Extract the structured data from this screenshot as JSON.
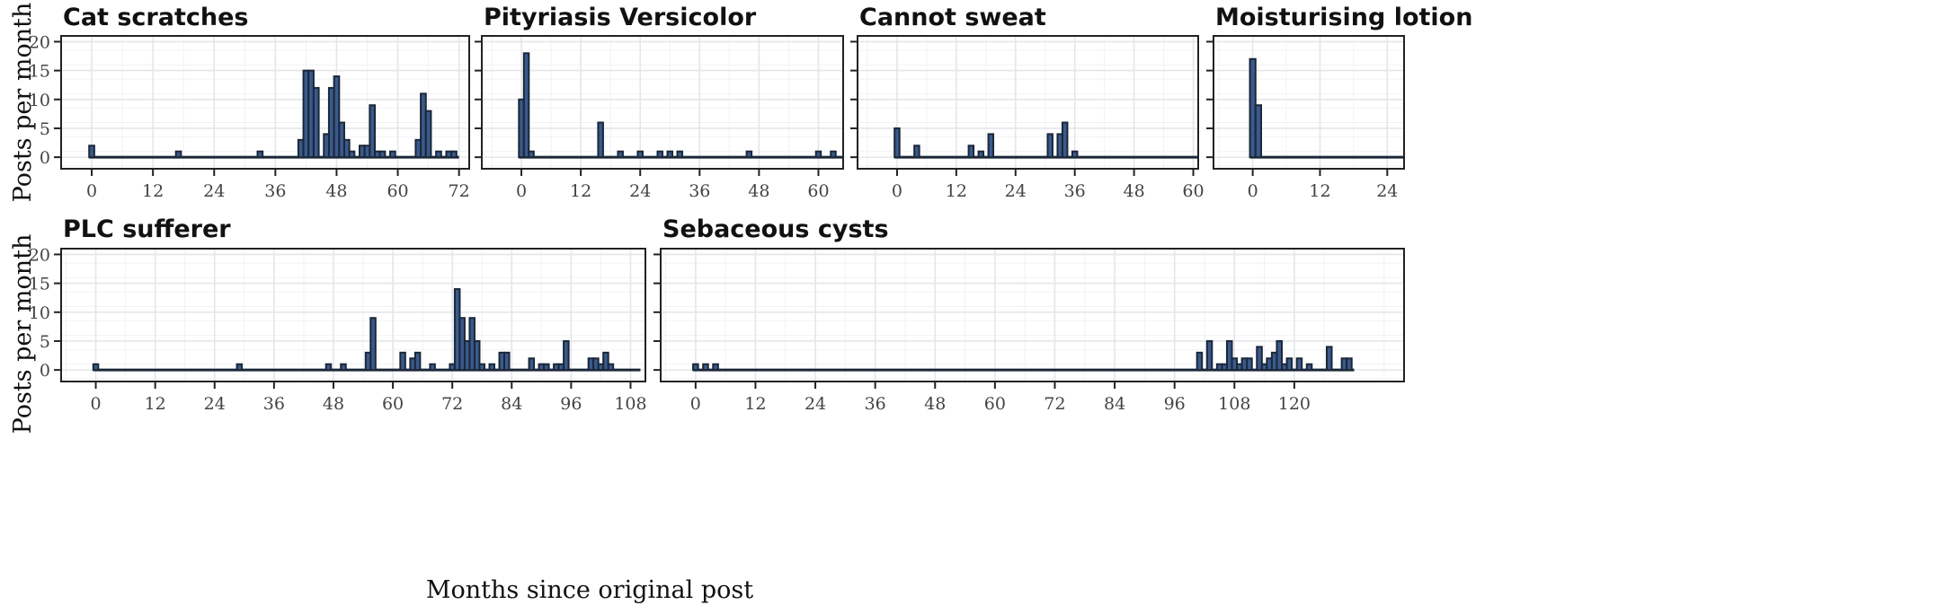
{
  "y_axis_label": "Posts per month",
  "x_axis_label": "Months since original post",
  "colors": {
    "bar_fill": "#3a5a8c",
    "bar_stroke": "#1b2738",
    "grid": "#e4e6ea",
    "frame": "#222222"
  },
  "chart_data": [
    {
      "type": "bar",
      "title": "Cat scratches",
      "xlim": [
        -6,
        74
      ],
      "ylim": [
        -2,
        21
      ],
      "xticks": [
        0,
        12,
        24,
        36,
        48,
        60,
        72
      ],
      "yticks": [
        0,
        5,
        10,
        15,
        20
      ],
      "x": [
        0,
        17,
        33,
        41,
        42,
        43,
        44,
        46,
        47,
        48,
        49,
        50,
        51,
        53,
        54,
        55,
        56,
        57,
        59,
        64,
        65,
        66,
        68,
        70,
        71
      ],
      "values": [
        2,
        1,
        1,
        3,
        15,
        15,
        12,
        4,
        12,
        14,
        6,
        3,
        1,
        2,
        2,
        9,
        1,
        1,
        1,
        3,
        11,
        8,
        1,
        1,
        1
      ],
      "series_extent": [
        0,
        72
      ]
    },
    {
      "type": "bar",
      "title": "Pityriasis Versicolor",
      "xlim": [
        -8,
        65
      ],
      "ylim": [
        -2,
        21
      ],
      "xticks": [
        0,
        12,
        24,
        36,
        48,
        60
      ],
      "yticks": [
        0,
        5,
        10,
        15,
        20
      ],
      "x": [
        0,
        1,
        2,
        16,
        20,
        24,
        28,
        30,
        32,
        46,
        60,
        63
      ],
      "values": [
        10,
        18,
        1,
        6,
        1,
        1,
        1,
        1,
        1,
        1,
        1,
        1
      ],
      "series_extent": [
        0,
        65
      ]
    },
    {
      "type": "bar",
      "title": "Cannot sweat",
      "xlim": [
        -8,
        61
      ],
      "ylim": [
        -2,
        21
      ],
      "xticks": [
        0,
        12,
        24,
        36,
        48,
        60
      ],
      "yticks": [
        0,
        5,
        10,
        15,
        20
      ],
      "x": [
        0,
        4,
        15,
        17,
        19,
        31,
        33,
        34,
        36
      ],
      "values": [
        5,
        2,
        2,
        1,
        4,
        4,
        4,
        6,
        1
      ],
      "series_extent": [
        0,
        61
      ]
    },
    {
      "type": "bar",
      "title": "Moisturising lotion",
      "xlim": [
        -7,
        27
      ],
      "ylim": [
        -2,
        21
      ],
      "xticks": [
        0,
        12,
        24
      ],
      "yticks": [
        0,
        5,
        10,
        15,
        20
      ],
      "x": [
        0,
        1
      ],
      "values": [
        17,
        9
      ],
      "series_extent": [
        0,
        27
      ]
    },
    {
      "type": "bar",
      "title": "PLC sufferer",
      "xlim": [
        -7,
        111
      ],
      "ylim": [
        -2,
        21
      ],
      "xticks": [
        0,
        12,
        24,
        36,
        48,
        60,
        72,
        84,
        96,
        108
      ],
      "yticks": [
        0,
        5,
        10,
        15,
        20
      ],
      "x": [
        0,
        29,
        47,
        50,
        55,
        56,
        62,
        64,
        65,
        68,
        72,
        73,
        74,
        75,
        76,
        77,
        78,
        80,
        82,
        83,
        88,
        90,
        91,
        93,
        94,
        95,
        100,
        101,
        102,
        103,
        104
      ],
      "values": [
        1,
        1,
        1,
        1,
        3,
        9,
        3,
        2,
        3,
        1,
        1,
        14,
        9,
        5,
        9,
        5,
        1,
        1,
        3,
        3,
        2,
        1,
        1,
        1,
        1,
        5,
        2,
        2,
        1,
        3,
        1
      ],
      "series_extent": [
        0,
        110
      ]
    },
    {
      "type": "bar",
      "title": "Sebaceous cysts",
      "xlim": [
        -7,
        142
      ],
      "ylim": [
        -2,
        21
      ],
      "xticks": [
        0,
        12,
        24,
        36,
        48,
        60,
        72,
        84,
        96,
        108,
        120
      ],
      "yticks": [
        0,
        5,
        10,
        15,
        20
      ],
      "x": [
        0,
        2,
        4,
        101,
        103,
        105,
        106,
        107,
        108,
        109,
        110,
        111,
        113,
        114,
        115,
        116,
        117,
        118,
        119,
        121,
        123,
        127,
        130,
        131
      ],
      "values": [
        1,
        1,
        1,
        3,
        5,
        1,
        1,
        5,
        2,
        1,
        2,
        2,
        4,
        1,
        2,
        3,
        5,
        1,
        2,
        2,
        1,
        4,
        2,
        2
      ],
      "series_extent": [
        0,
        132
      ]
    }
  ]
}
